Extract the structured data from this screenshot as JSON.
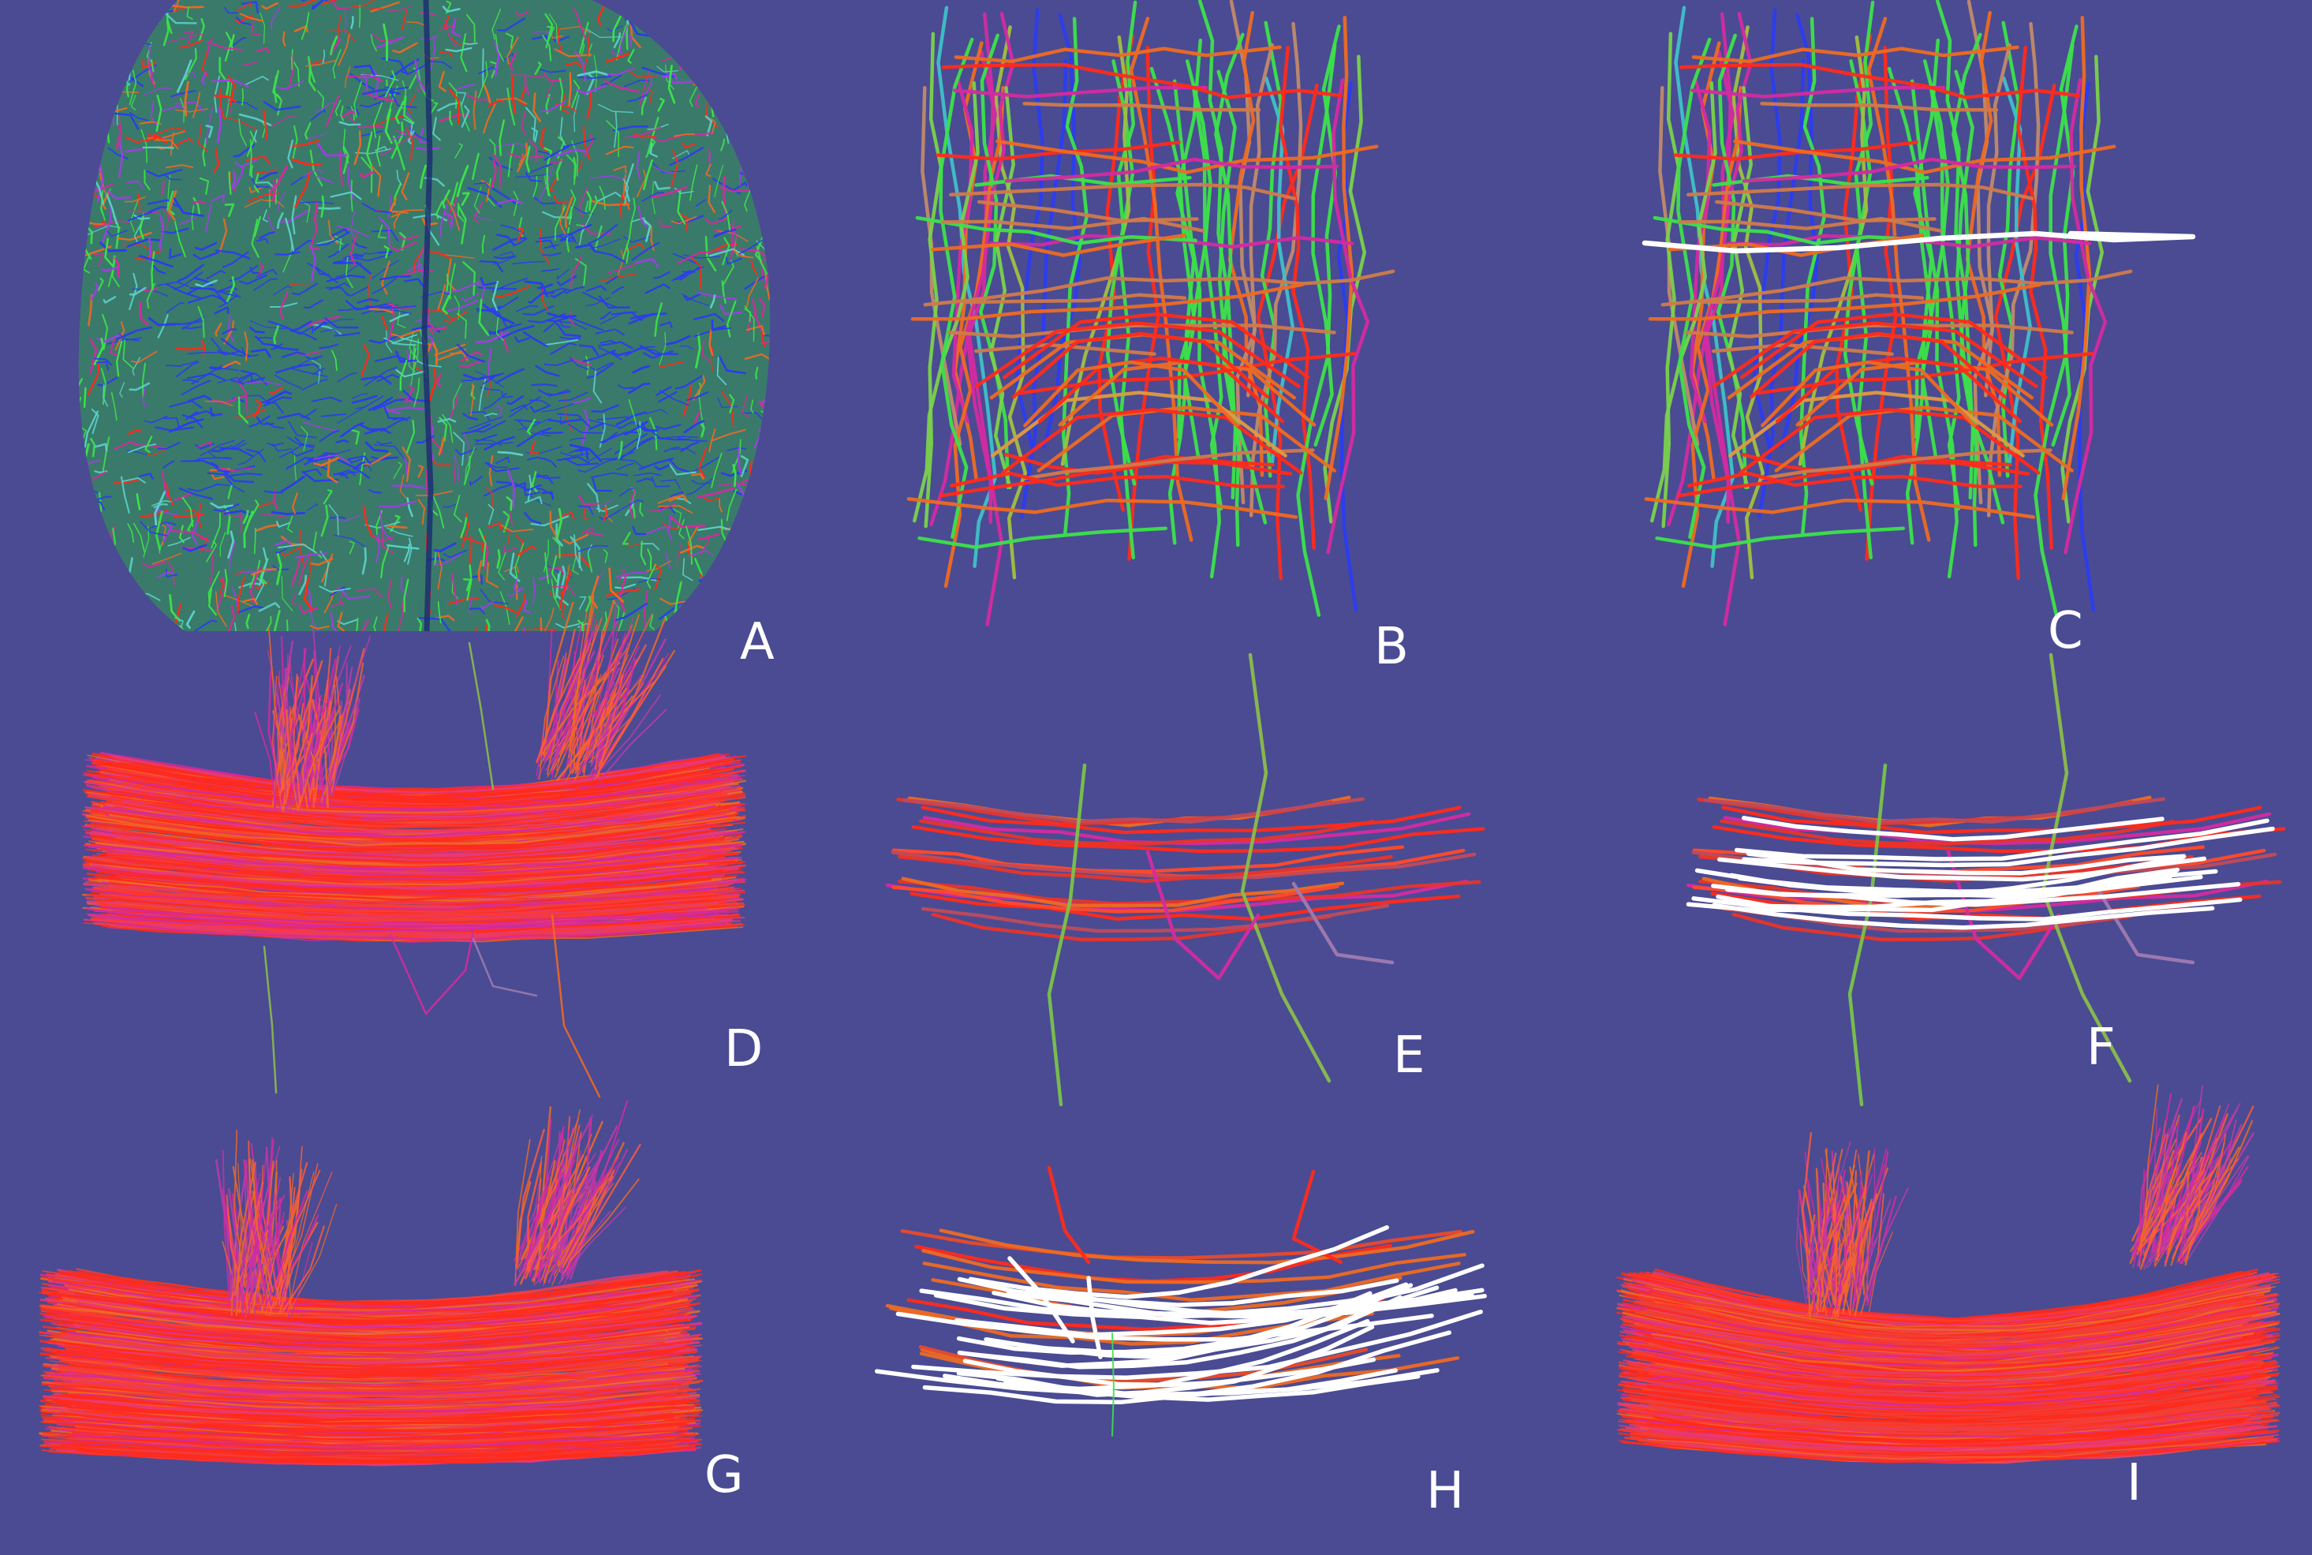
{
  "figure": {
    "background_color": "#4a4b93",
    "panels": [
      {
        "id": "A",
        "label": "A",
        "content": "whole-brain axial tractography, direction-colored streamlines"
      },
      {
        "id": "B",
        "label": "B",
        "content": "sparse streamline subset, direction-colored"
      },
      {
        "id": "C",
        "label": "C",
        "content": "sparse streamline subset with one selected streamline highlighted white"
      },
      {
        "id": "D",
        "label": "D",
        "content": "dense red bundle with a few outlier fibers"
      },
      {
        "id": "E",
        "label": "E",
        "content": "sparse subset of the bundle"
      },
      {
        "id": "F",
        "label": "F",
        "content": "sparse subset with selected streamlines highlighted white"
      },
      {
        "id": "G",
        "label": "G",
        "content": "dense red bundle"
      },
      {
        "id": "H",
        "label": "H",
        "content": "sparse subset with many streamlines highlighted white"
      },
      {
        "id": "I",
        "label": "I",
        "content": "cleaned dense red bundle"
      }
    ],
    "colors": {
      "red": "#ff2a1a",
      "magenta": "#d42aa0",
      "green": "#3ce24a",
      "blue": "#2a3cf0",
      "orange": "#ee6a22",
      "highlight": "#ffffff"
    }
  }
}
